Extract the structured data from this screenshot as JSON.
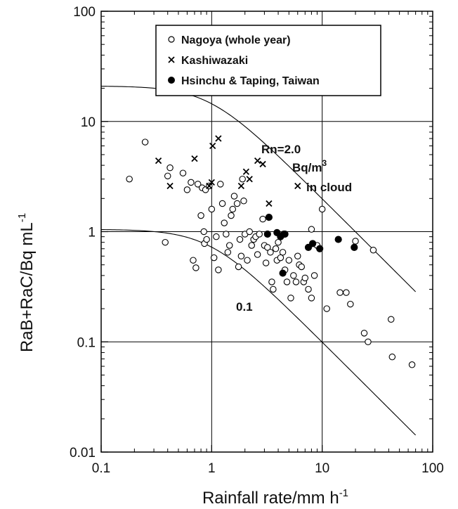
{
  "chart_data": {
    "type": "scatter",
    "x_scale": "log",
    "y_scale": "log",
    "xlim": [
      0.1,
      100
    ],
    "ylim": [
      0.01,
      100
    ],
    "grid": true,
    "legend_position": "top-center",
    "xlabel_base": "Rainfall rate/mm h",
    "xlabel_sup": "-1",
    "ylabel_base": "RaB+RaC/Bq mL",
    "ylabel_sup": "-1",
    "x_ticks": [
      {
        "value": 0.1,
        "label": "0.1"
      },
      {
        "value": 1,
        "label": "1"
      },
      {
        "value": 10,
        "label": "10"
      },
      {
        "value": 100,
        "label": "100"
      }
    ],
    "y_ticks": [
      {
        "value": 0.01,
        "label": "0.01"
      },
      {
        "value": 0.1,
        "label": "0.1"
      },
      {
        "value": 1,
        "label": "1"
      },
      {
        "value": 10,
        "label": "10"
      },
      {
        "value": 100,
        "label": "100"
      }
    ],
    "legend": [
      {
        "symbol": "open-circle",
        "label": "Nagoya (whole year)"
      },
      {
        "symbol": "x",
        "label": "Kashiwazaki"
      },
      {
        "symbol": "filled-circle",
        "label": "Hsinchu & Taping, Taiwan"
      }
    ],
    "annotations": {
      "upper_line_1": "Rn=2.0",
      "upper_line_2_base": "Bq/m",
      "upper_line_2_sup": "3",
      "upper_line_3": "in cloud",
      "lower_line": "0.1"
    },
    "series": [
      {
        "name": "Nagoya (whole year)",
        "marker": "open-circle",
        "points": [
          [
            0.18,
            3.0
          ],
          [
            0.25,
            6.5
          ],
          [
            0.38,
            0.8
          ],
          [
            0.4,
            3.2
          ],
          [
            0.42,
            3.8
          ],
          [
            0.55,
            3.4
          ],
          [
            0.6,
            2.4
          ],
          [
            0.65,
            2.8
          ],
          [
            0.68,
            0.55
          ],
          [
            0.72,
            0.47
          ],
          [
            0.75,
            2.7
          ],
          [
            0.8,
            1.4
          ],
          [
            0.82,
            2.5
          ],
          [
            0.85,
            1.0
          ],
          [
            0.86,
            0.78
          ],
          [
            0.88,
            2.4
          ],
          [
            0.9,
            0.85
          ],
          [
            0.95,
            2.6
          ],
          [
            1.0,
            1.6
          ],
          [
            1.05,
            0.58
          ],
          [
            1.1,
            0.9
          ],
          [
            1.15,
            0.45
          ],
          [
            1.2,
            2.7
          ],
          [
            1.25,
            1.8
          ],
          [
            1.3,
            1.2
          ],
          [
            1.35,
            0.95
          ],
          [
            1.4,
            0.65
          ],
          [
            1.45,
            0.75
          ],
          [
            1.5,
            1.4
          ],
          [
            1.55,
            1.6
          ],
          [
            1.6,
            2.1
          ],
          [
            1.7,
            1.8
          ],
          [
            1.75,
            0.48
          ],
          [
            1.8,
            0.85
          ],
          [
            1.85,
            0.6
          ],
          [
            1.9,
            3.0
          ],
          [
            1.95,
            1.9
          ],
          [
            2.0,
            0.95
          ],
          [
            2.1,
            0.55
          ],
          [
            2.2,
            1.0
          ],
          [
            2.3,
            0.75
          ],
          [
            2.4,
            0.85
          ],
          [
            2.5,
            0.9
          ],
          [
            2.6,
            0.62
          ],
          [
            2.7,
            0.95
          ],
          [
            2.9,
            1.3
          ],
          [
            3.0,
            0.75
          ],
          [
            3.1,
            0.52
          ],
          [
            3.2,
            0.72
          ],
          [
            3.4,
            0.65
          ],
          [
            3.5,
            0.35
          ],
          [
            3.6,
            0.3
          ],
          [
            3.8,
            0.7
          ],
          [
            3.9,
            0.55
          ],
          [
            4.0,
            0.8
          ],
          [
            4.2,
            0.58
          ],
          [
            4.4,
            0.65
          ],
          [
            4.6,
            0.45
          ],
          [
            4.8,
            0.35
          ],
          [
            5.0,
            0.55
          ],
          [
            5.2,
            0.25
          ],
          [
            5.5,
            0.4
          ],
          [
            5.8,
            0.35
          ],
          [
            6.0,
            0.6
          ],
          [
            6.2,
            0.5
          ],
          [
            6.5,
            0.48
          ],
          [
            6.8,
            0.35
          ],
          [
            7.0,
            0.38
          ],
          [
            7.5,
            0.3
          ],
          [
            8.0,
            0.25
          ],
          [
            8.5,
            0.4
          ],
          [
            9.0,
            0.75
          ],
          [
            10.0,
            1.6
          ],
          [
            11.0,
            0.2
          ],
          [
            14.5,
            0.28
          ],
          [
            16.5,
            0.28
          ],
          [
            18.0,
            0.22
          ],
          [
            20.0,
            0.82
          ],
          [
            24.0,
            0.12
          ],
          [
            26.0,
            0.1
          ],
          [
            29.0,
            0.68
          ],
          [
            42.0,
            0.16
          ],
          [
            43.0,
            0.073
          ],
          [
            65.0,
            0.062
          ],
          [
            8.0,
            1.05
          ]
        ]
      },
      {
        "name": "Kashiwazaki",
        "marker": "x",
        "points": [
          [
            0.33,
            4.4
          ],
          [
            0.42,
            2.6
          ],
          [
            0.7,
            4.6
          ],
          [
            0.95,
            2.6
          ],
          [
            1.0,
            2.8
          ],
          [
            1.02,
            6.0
          ],
          [
            1.15,
            7.0
          ],
          [
            1.85,
            2.6
          ],
          [
            2.05,
            3.5
          ],
          [
            2.2,
            3.0
          ],
          [
            2.6,
            4.4
          ],
          [
            2.9,
            4.1
          ],
          [
            3.3,
            1.8
          ],
          [
            6.0,
            2.6
          ]
        ]
      },
      {
        "name": "Hsinchu & Taping, Taiwan",
        "marker": "filled-circle",
        "points": [
          [
            3.3,
            1.35
          ],
          [
            3.2,
            0.95
          ],
          [
            3.9,
            0.98
          ],
          [
            4.2,
            0.9
          ],
          [
            4.5,
            0.95
          ],
          [
            4.4,
            0.42
          ],
          [
            4.6,
            0.95
          ],
          [
            7.5,
            0.72
          ],
          [
            8.2,
            0.78
          ],
          [
            9.5,
            0.7
          ],
          [
            14.0,
            0.85
          ],
          [
            19.5,
            0.72
          ]
        ]
      }
    ]
  }
}
